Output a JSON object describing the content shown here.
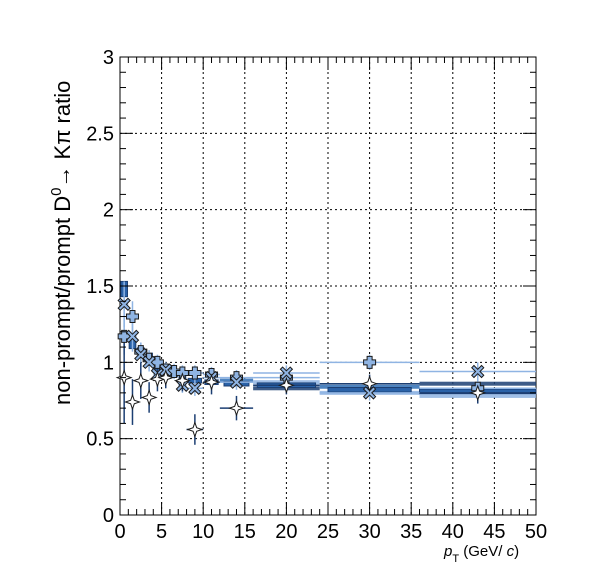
{
  "chart_data": {
    "type": "scatter",
    "title": "",
    "ylabel_main": "non-prompt/prompt D",
    "ylabel_sup": "0",
    "ylabel_tail": "→ Kπ ratio",
    "xlabel_var": "p",
    "xlabel_sub": "T",
    "xlabel_unit_open": " (GeV/ ",
    "xlabel_unit_c": "c",
    "xlabel_unit_close": ")",
    "xlim": [
      0,
      50
    ],
    "ylim": [
      0,
      3
    ],
    "x_ticks": [
      "0",
      "5",
      "10",
      "15",
      "20",
      "25",
      "30",
      "35",
      "40",
      "45",
      "50"
    ],
    "y_ticks": [
      "0",
      "0.5",
      "1",
      "1.5",
      "2",
      "2.5",
      "3"
    ],
    "grid": true,
    "colors": {
      "dark": "#1c3f73",
      "mid": "#2f6fb5",
      "light": "#8fb4e3",
      "lightest": "#b9d0ee",
      "box": "#2a62a8"
    },
    "series": [
      {
        "marker": "cross",
        "color": "#8fb4e3",
        "points": [
          {
            "x": 0.5,
            "y": 1.17,
            "xerr": 0.5,
            "yerr": 0.12
          },
          {
            "x": 1.5,
            "y": 1.3,
            "xerr": 0.5,
            "yerr": 0.1
          },
          {
            "x": 2.5,
            "y": 1.07,
            "xerr": 0.5,
            "yerr": 0.06
          },
          {
            "x": 3.5,
            "y": 1.02,
            "xerr": 0.5,
            "yerr": 0.06
          },
          {
            "x": 4.5,
            "y": 1.0,
            "xerr": 0.5,
            "yerr": 0.05
          },
          {
            "x": 5.5,
            "y": 0.95,
            "xerr": 0.5,
            "yerr": 0.05
          },
          {
            "x": 6.5,
            "y": 0.94,
            "xerr": 0.5,
            "yerr": 0.05
          },
          {
            "x": 7.5,
            "y": 0.93,
            "xerr": 0.5,
            "yerr": 0.05
          },
          {
            "x": 9.0,
            "y": 0.93,
            "xerr": 1.0,
            "yerr": 0.05
          },
          {
            "x": 11.0,
            "y": 0.92,
            "xerr": 1.0,
            "yerr": 0.05
          },
          {
            "x": 14.0,
            "y": 0.9,
            "xerr": 2.0,
            "yerr": 0.05
          },
          {
            "x": 20.0,
            "y": 0.9,
            "xerr": 4.0,
            "yerr": 0.05
          },
          {
            "x": 30.0,
            "y": 1.0,
            "xerr": 6.0,
            "yerr": 0.05
          },
          {
            "x": 43.0,
            "y": 0.83,
            "xerr": 7.0,
            "yerr": 0.06
          }
        ]
      },
      {
        "marker": "xmark",
        "color": "#8fb4e3",
        "points": [
          {
            "x": 0.5,
            "y": 1.38,
            "xerr": 0.5,
            "yerr": 0.15
          },
          {
            "x": 1.5,
            "y": 1.17,
            "xerr": 0.5,
            "yerr": 0.1
          },
          {
            "x": 2.5,
            "y": 1.05,
            "xerr": 0.5,
            "yerr": 0.08
          },
          {
            "x": 3.5,
            "y": 1.0,
            "xerr": 0.5,
            "yerr": 0.06
          },
          {
            "x": 4.5,
            "y": 0.92,
            "xerr": 0.5,
            "yerr": 0.06
          },
          {
            "x": 5.5,
            "y": 0.95,
            "xerr": 0.5,
            "yerr": 0.05
          },
          {
            "x": 7.5,
            "y": 0.85,
            "xerr": 0.5,
            "yerr": 0.05
          },
          {
            "x": 9.0,
            "y": 0.83,
            "xerr": 1.0,
            "yerr": 0.05
          },
          {
            "x": 11.0,
            "y": 0.9,
            "xerr": 1.0,
            "yerr": 0.05
          },
          {
            "x": 14.0,
            "y": 0.87,
            "xerr": 2.0,
            "yerr": 0.05
          },
          {
            "x": 20.0,
            "y": 0.93,
            "xerr": 4.0,
            "yerr": 0.05
          },
          {
            "x": 30.0,
            "y": 0.8,
            "xerr": 6.0,
            "yerr": 0.05
          },
          {
            "x": 43.0,
            "y": 0.94,
            "xerr": 7.0,
            "yerr": 0.06
          }
        ]
      },
      {
        "marker": "star4",
        "color": "#1c3f73",
        "points": [
          {
            "x": 0.5,
            "y": 0.9,
            "xerr": 0.5,
            "yerr": 0.3
          },
          {
            "x": 1.5,
            "y": 0.74,
            "xerr": 0.5,
            "yerr": 0.15
          },
          {
            "x": 2.5,
            "y": 0.88,
            "xerr": 0.5,
            "yerr": 0.12
          },
          {
            "x": 3.5,
            "y": 0.77,
            "xerr": 0.5,
            "yerr": 0.1
          },
          {
            "x": 4.5,
            "y": 0.89,
            "xerr": 0.5,
            "yerr": 0.08
          },
          {
            "x": 5.5,
            "y": 0.9,
            "xerr": 0.5,
            "yerr": 0.07
          },
          {
            "x": 7.5,
            "y": 0.88,
            "xerr": 0.5,
            "yerr": 0.07
          },
          {
            "x": 9.0,
            "y": 0.56,
            "xerr": 1.0,
            "yerr": 0.1
          },
          {
            "x": 11.0,
            "y": 0.87,
            "xerr": 1.0,
            "yerr": 0.08
          },
          {
            "x": 14.0,
            "y": 0.7,
            "xerr": 2.0,
            "yerr": 0.08
          },
          {
            "x": 20.0,
            "y": 0.85,
            "xerr": 4.0,
            "yerr": 0.06
          },
          {
            "x": 30.0,
            "y": 0.86,
            "xerr": 6.0,
            "yerr": 0.06
          },
          {
            "x": 43.0,
            "y": 0.8,
            "xerr": 7.0,
            "yerr": 0.07
          }
        ]
      }
    ],
    "boxes": [
      {
        "x": 0.5,
        "y": 1.48,
        "xw": 0.8,
        "h": 0.1
      },
      {
        "x": 1.5,
        "y": 1.12,
        "xw": 0.8,
        "h": 0.06
      },
      {
        "x": 2.5,
        "y": 1.07,
        "xw": 0.8,
        "h": 0.05
      },
      {
        "x": 3.5,
        "y": 1.04,
        "xw": 0.8,
        "h": 0.04
      },
      {
        "x": 4.5,
        "y": 0.97,
        "xw": 0.8,
        "h": 0.04
      },
      {
        "x": 5.5,
        "y": 0.94,
        "xw": 0.8,
        "h": 0.03
      },
      {
        "x": 6.5,
        "y": 0.92,
        "xw": 0.8,
        "h": 0.03
      },
      {
        "x": 7.5,
        "y": 0.9,
        "xw": 0.8,
        "h": 0.03
      },
      {
        "x": 9.0,
        "y": 0.88,
        "xw": 1.6,
        "h": 0.03
      },
      {
        "x": 11.0,
        "y": 0.87,
        "xw": 1.6,
        "h": 0.03
      },
      {
        "x": 14.0,
        "y": 0.86,
        "xw": 3.0,
        "h": 0.03
      },
      {
        "x": 20.0,
        "y": 0.85,
        "xw": 7.0,
        "h": 0.03
      },
      {
        "x": 30.0,
        "y": 0.82,
        "xw": 10.0,
        "h": 0.03
      },
      {
        "x": 43.0,
        "y": 0.81,
        "xw": 14.0,
        "h": 0.03
      }
    ],
    "bands": [
      {
        "x0": 12.0,
        "x1": 16.0,
        "y": 0.88
      },
      {
        "x0": 16.0,
        "x1": 24.0,
        "y": 0.87
      },
      {
        "x0": 16.0,
        "x1": 24.0,
        "y": 0.83
      },
      {
        "x0": 24.0,
        "x1": 36.0,
        "y": 0.84
      },
      {
        "x0": 24.0,
        "x1": 36.0,
        "y": 0.8
      },
      {
        "x0": 36.0,
        "x1": 50.0,
        "y": 0.86
      },
      {
        "x0": 36.0,
        "x1": 50.0,
        "y": 0.82
      },
      {
        "x0": 36.0,
        "x1": 50.0,
        "y": 0.78
      }
    ]
  }
}
